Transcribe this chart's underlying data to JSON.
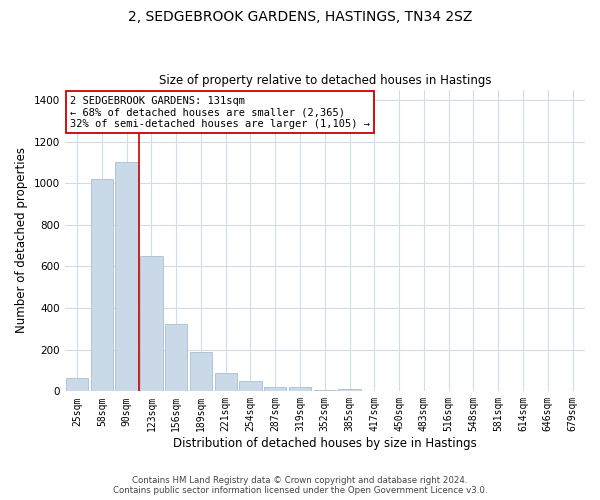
{
  "title": "2, SEDGEBROOK GARDENS, HASTINGS, TN34 2SZ",
  "subtitle": "Size of property relative to detached houses in Hastings",
  "xlabel": "Distribution of detached houses by size in Hastings",
  "ylabel": "Number of detached properties",
  "bar_labels": [
    "25sqm",
    "58sqm",
    "90sqm",
    "123sqm",
    "156sqm",
    "189sqm",
    "221sqm",
    "254sqm",
    "287sqm",
    "319sqm",
    "352sqm",
    "385sqm",
    "417sqm",
    "450sqm",
    "483sqm",
    "516sqm",
    "548sqm",
    "581sqm",
    "614sqm",
    "646sqm",
    "679sqm"
  ],
  "bar_values": [
    65,
    1020,
    1100,
    650,
    325,
    190,
    90,
    48,
    20,
    20,
    5,
    10,
    0,
    0,
    0,
    0,
    0,
    0,
    0,
    0,
    0
  ],
  "bar_color": "#c9d9e8",
  "bar_edge_color": "#a8c0d4",
  "vline_color": "#cc0000",
  "annotation_text": "2 SEDGEBROOK GARDENS: 131sqm\n← 68% of detached houses are smaller (2,365)\n32% of semi-detached houses are larger (1,105) →",
  "annotation_box_color": "#ffffff",
  "annotation_box_edge": "#cc0000",
  "ylim": [
    0,
    1450
  ],
  "yticks": [
    0,
    200,
    400,
    600,
    800,
    1000,
    1200,
    1400
  ],
  "footer_line1": "Contains HM Land Registry data © Crown copyright and database right 2024.",
  "footer_line2": "Contains public sector information licensed under the Open Government Licence v3.0.",
  "background_color": "#ffffff",
  "grid_color": "#d0dce8"
}
